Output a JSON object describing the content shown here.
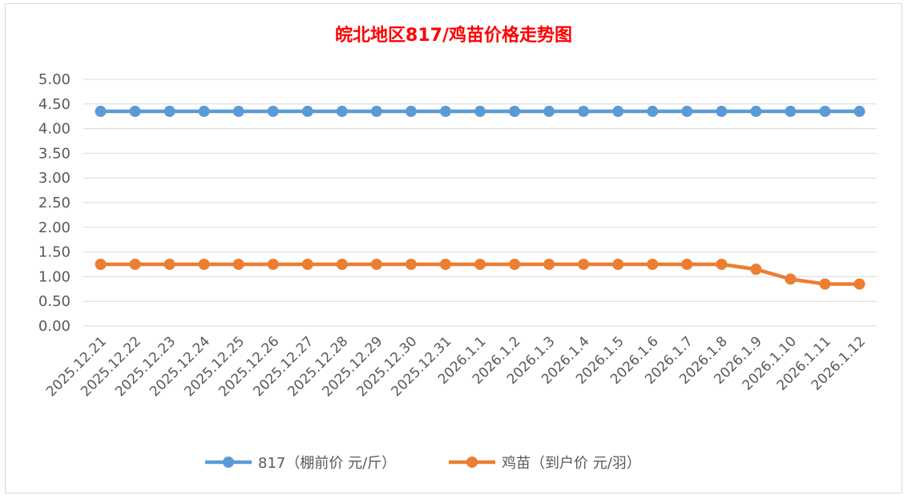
{
  "chart_data": {
    "type": "line",
    "title": "皖北地区817/鸡苗价格走势图",
    "xlabel": "",
    "ylabel": "",
    "ylim": [
      0,
      5
    ],
    "yticks": [
      "0.00",
      "0.50",
      "1.00",
      "1.50",
      "2.00",
      "2.50",
      "3.00",
      "3.50",
      "4.00",
      "4.50",
      "5.00"
    ],
    "grid": true,
    "legend_position": "bottom",
    "categories": [
      "2025.12.21",
      "2025.12.22",
      "2025.12.23",
      "2025.12.24",
      "2025.12.25",
      "2025.12.26",
      "2025.12.27",
      "2025.12.28",
      "2025.12.29",
      "2025.12.30",
      "2025.12.31",
      "2026.1.1",
      "2026.1.2",
      "2026.1.3",
      "2026.1.4",
      "2026.1.5",
      "2026.1.6",
      "2026.1.7",
      "2026.1.8",
      "2026.1.9",
      "2026.1.10",
      "2026.1.11",
      "2026.1.12"
    ],
    "series": [
      {
        "name": "817（棚前价 元/斤）",
        "color": "#5b9bd5",
        "values": [
          4.35,
          4.35,
          4.35,
          4.35,
          4.35,
          4.35,
          4.35,
          4.35,
          4.35,
          4.35,
          4.35,
          4.35,
          4.35,
          4.35,
          4.35,
          4.35,
          4.35,
          4.35,
          4.35,
          4.35,
          4.35,
          4.35,
          4.35
        ]
      },
      {
        "name": "鸡苗（到户价 元/羽）",
        "color": "#ed7d31",
        "values": [
          1.25,
          1.25,
          1.25,
          1.25,
          1.25,
          1.25,
          1.25,
          1.25,
          1.25,
          1.25,
          1.25,
          1.25,
          1.25,
          1.25,
          1.25,
          1.25,
          1.25,
          1.25,
          1.25,
          1.15,
          0.95,
          0.85,
          0.85
        ]
      }
    ]
  }
}
